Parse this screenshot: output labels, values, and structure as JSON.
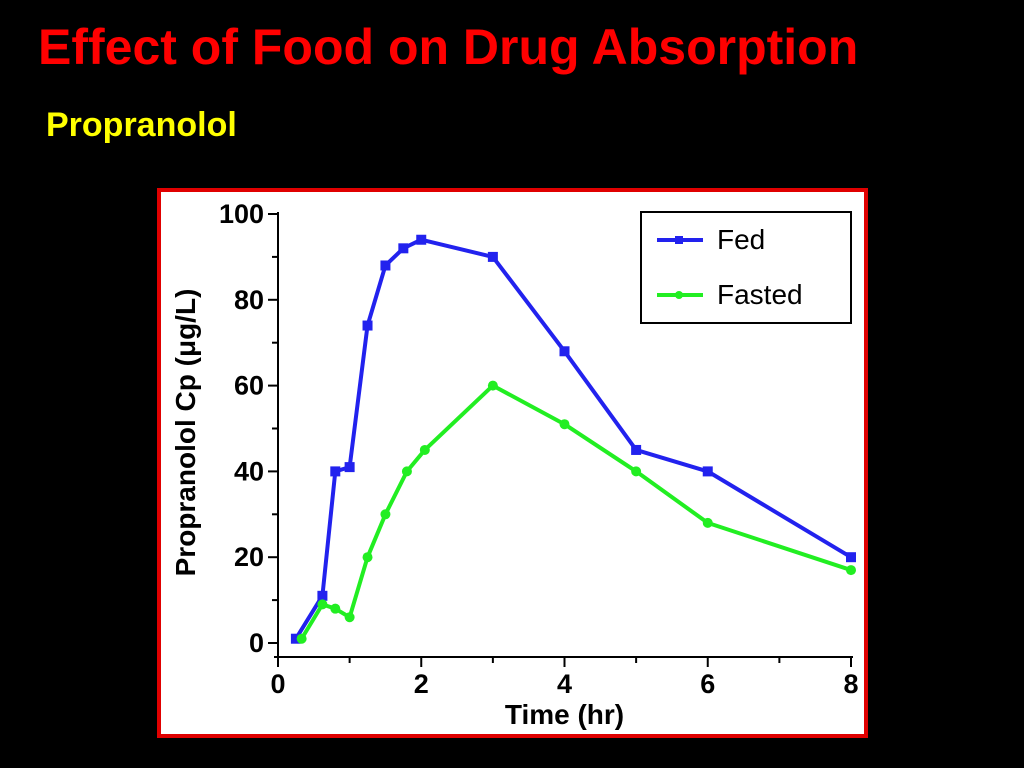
{
  "slide": {
    "title": "Effect of Food on Drug Absorption",
    "subtitle": "Propranolol"
  },
  "chart_data": {
    "type": "line",
    "xlabel": "Time (hr)",
    "ylabel": "Propranolol Cp (μg/L)",
    "xlim": [
      0,
      8
    ],
    "ylim": [
      0,
      100
    ],
    "x_ticks": [
      0,
      2,
      4,
      6,
      8
    ],
    "y_ticks": [
      0,
      20,
      40,
      60,
      80,
      100
    ],
    "grid": false,
    "legend_position": "top-right",
    "series": [
      {
        "name": "Fed",
        "color": "#2222ee",
        "marker": "square",
        "x": [
          0.25,
          0.62,
          0.8,
          1.0,
          1.25,
          1.5,
          1.75,
          2.0,
          3.0,
          4.0,
          5.0,
          6.0,
          8.0
        ],
        "y": [
          1,
          11,
          40,
          41,
          74,
          88,
          92,
          94,
          90,
          68,
          45,
          40,
          20
        ]
      },
      {
        "name": "Fasted",
        "color": "#22ee22",
        "marker": "circle",
        "x": [
          0.33,
          0.62,
          0.8,
          1.0,
          1.25,
          1.5,
          1.8,
          2.05,
          3.0,
          4.0,
          5.0,
          6.0,
          8.0
        ],
        "y": [
          1,
          9,
          8,
          6,
          20,
          30,
          40,
          45,
          60,
          51,
          40,
          28,
          17
        ]
      }
    ]
  }
}
